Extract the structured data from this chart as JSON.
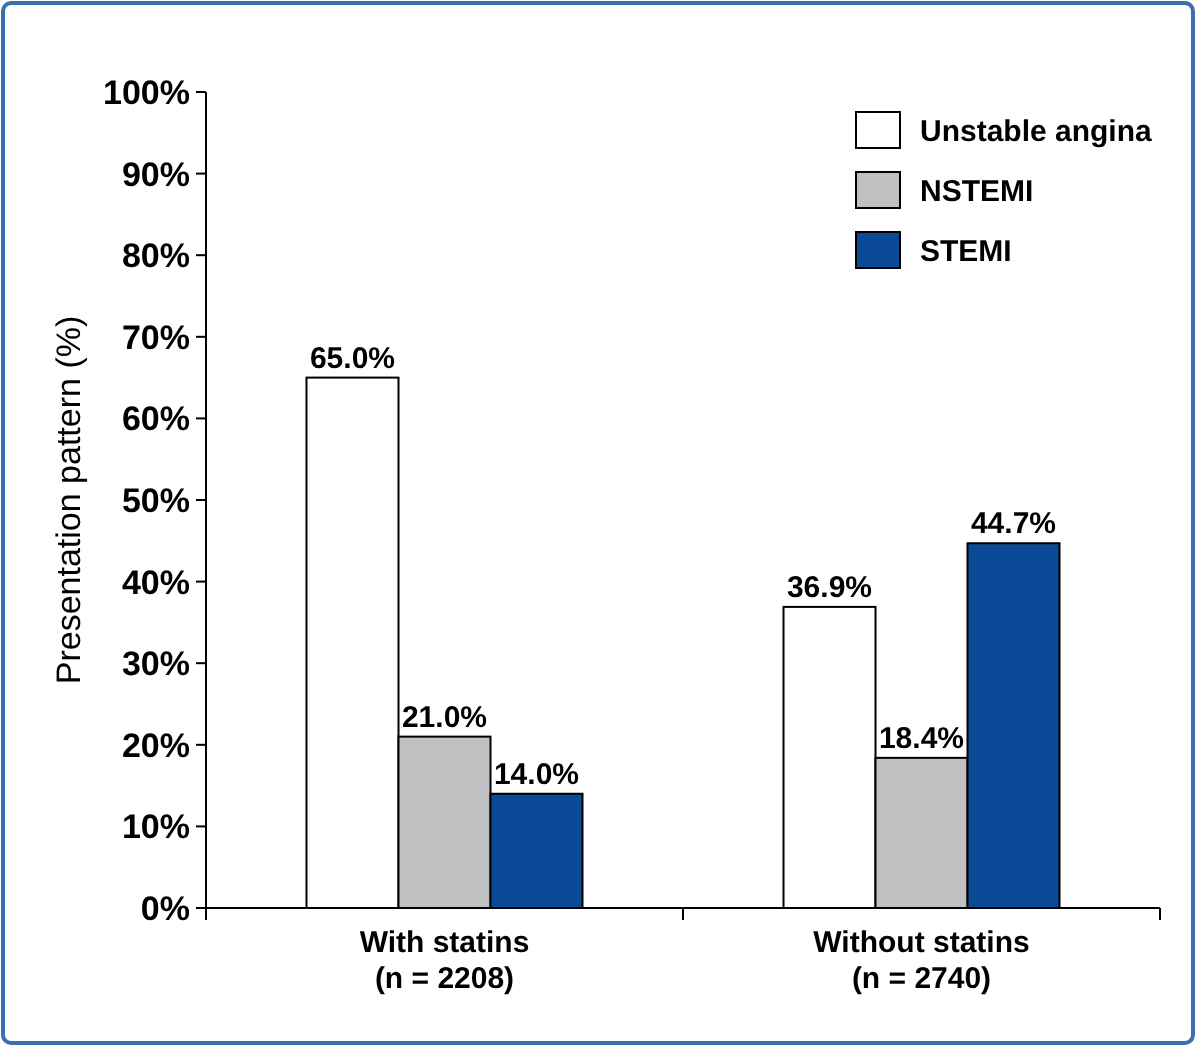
{
  "chart_data": {
    "type": "bar",
    "ylabel": "Presentation pattern (%)",
    "categories": [
      "With statins\n(n = 2208)",
      "Without statins\n(n = 2740)"
    ],
    "series": [
      {
        "name": "Unstable angina",
        "color": "#ffffff",
        "values": [
          65.0,
          36.9
        ],
        "value_labels": [
          "65.0%",
          "36.9%"
        ]
      },
      {
        "name": "NSTEMI",
        "color": "#c0c0c2",
        "values": [
          21.0,
          18.4
        ],
        "value_labels": [
          "21.0%",
          "18.4%"
        ]
      },
      {
        "name": "STEMI",
        "color": "#0b4a96",
        "values": [
          14.0,
          44.7
        ],
        "value_labels": [
          "14.0%",
          "44.7%"
        ]
      }
    ],
    "ylim": [
      0,
      100
    ],
    "yticks": [
      {
        "value": 0,
        "label": "0%"
      },
      {
        "value": 10,
        "label": "10%"
      },
      {
        "value": 20,
        "label": "20%"
      },
      {
        "value": 30,
        "label": "30%"
      },
      {
        "value": 40,
        "label": "40%"
      },
      {
        "value": 50,
        "label": "50%"
      },
      {
        "value": 60,
        "label": "60%"
      },
      {
        "value": 70,
        "label": "70%"
      },
      {
        "value": 80,
        "label": "80%"
      },
      {
        "value": 90,
        "label": "90%"
      },
      {
        "value": 100,
        "label": "100%"
      }
    ],
    "grid": false,
    "legend": "top right"
  }
}
